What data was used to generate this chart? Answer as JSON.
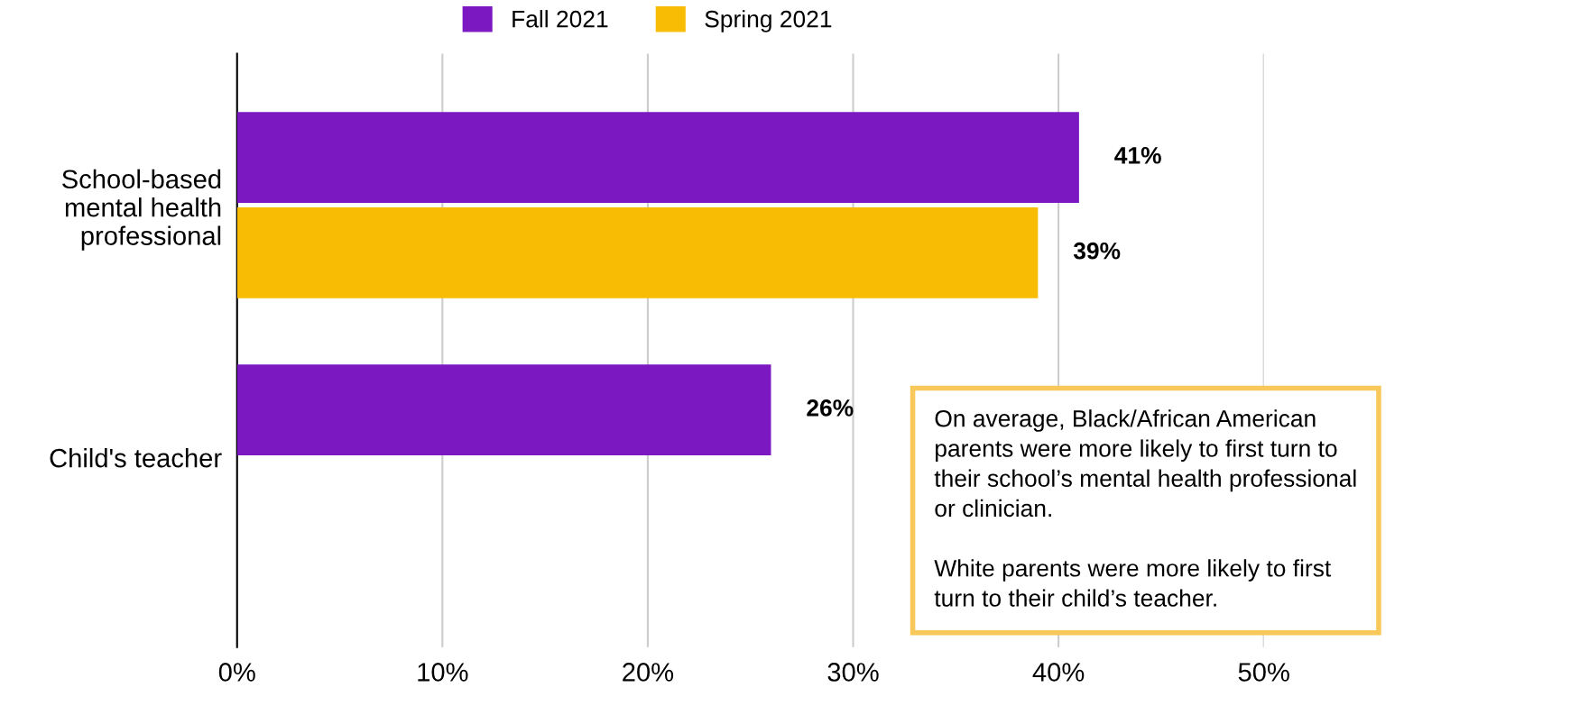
{
  "chart_data": {
    "type": "bar",
    "orientation": "horizontal",
    "categories": [
      "School-based\nmental health\nprofessional",
      "Child's teacher"
    ],
    "series": [
      {
        "name": "Fall 2021",
        "color": "#7b18c1",
        "values": [
          41,
          26
        ],
        "value_labels": [
          "41%",
          "26%"
        ]
      },
      {
        "name": "Spring 2021",
        "color": "#f8bc05",
        "values": [
          39,
          null
        ],
        "value_labels": [
          "39%",
          null
        ]
      }
    ],
    "xlim": [
      0,
      50
    ],
    "xticks": [
      {
        "value": 0,
        "label": "0%"
      },
      {
        "value": 10,
        "label": "10%"
      },
      {
        "value": 20,
        "label": "20%"
      },
      {
        "value": 30,
        "label": "30%"
      },
      {
        "value": 40,
        "label": "40%"
      },
      {
        "value": 50,
        "label": "50%"
      }
    ],
    "grid": "x",
    "legend": "top",
    "annotations": [
      "On average, Black/African American parents were more likely to first turn to their school’s mental health professional or clinician.\n\nWhite parents were more likely to first turn to their child’s teacher."
    ]
  }
}
